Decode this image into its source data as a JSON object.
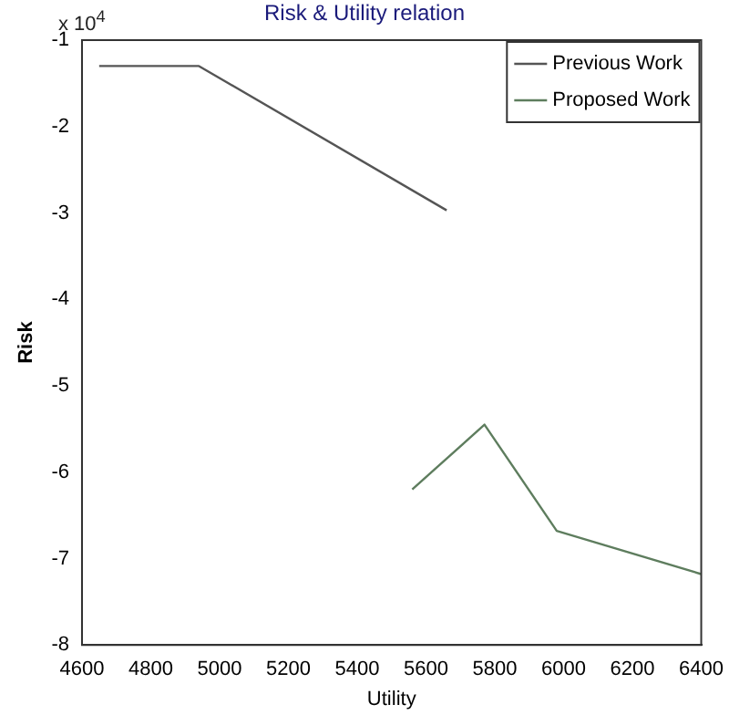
{
  "chart_data": {
    "type": "line",
    "title": "Risk & Utility relation",
    "xlabel": "Utility",
    "ylabel": "Risk",
    "annotations": [
      "x 10$^{4}$"
    ],
    "xlim": [
      4600,
      6400
    ],
    "xticks": [
      4600,
      4800,
      5000,
      5200,
      5400,
      5600,
      5800,
      6000,
      6200,
      6400
    ],
    "ylim": [
      -8,
      -1
    ],
    "yticks": [
      -8,
      -7,
      -6,
      -5,
      -4,
      -3,
      -2,
      -1
    ],
    "grid": false,
    "legend": "top right",
    "marker": "none",
    "line_style": "solid",
    "series": [
      {
        "name": "Previous Work",
        "color": "#555555",
        "x": [
          4650,
          4940,
          5660
        ],
        "values": [
          -1.3,
          -1.3,
          -2.97
        ]
      },
      {
        "name": "Proposed Work",
        "color": "#5e7d5e",
        "x": [
          5560,
          5770,
          5980,
          6400
        ],
        "values": [
          -6.2,
          -5.45,
          -6.68,
          -7.18
        ]
      }
    ]
  }
}
